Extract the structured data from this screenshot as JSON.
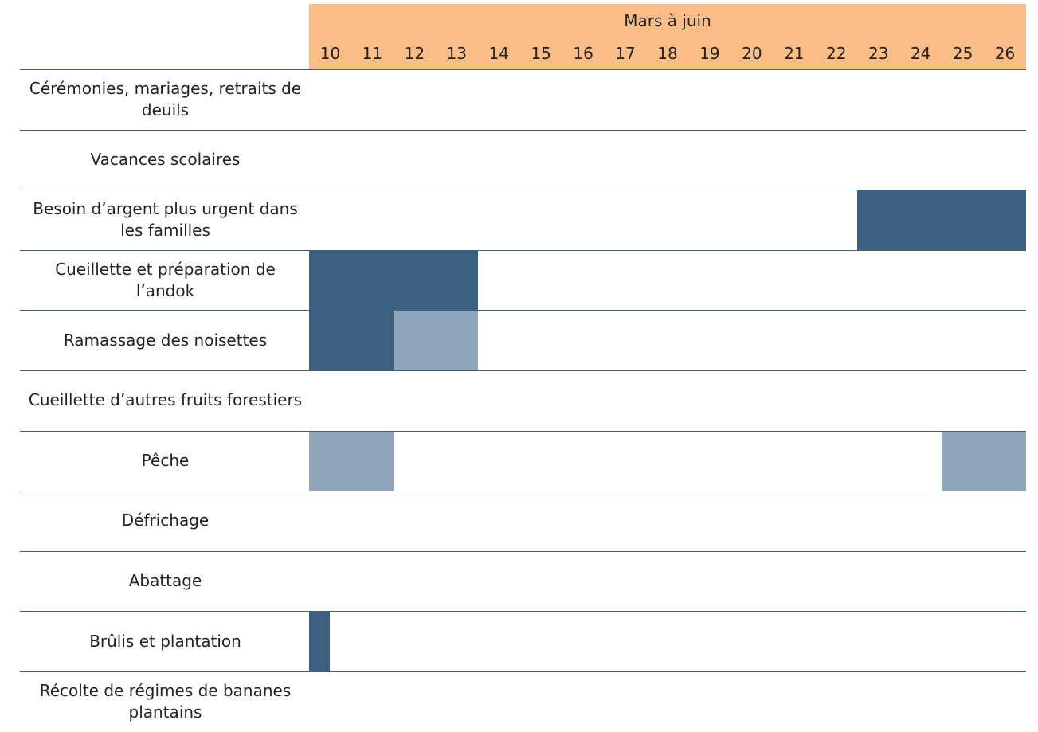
{
  "chart_data": {
    "type": "timeline",
    "header": "Mars à juin",
    "xlim": [
      9.5,
      26.5
    ],
    "xticks": [
      10,
      11,
      12,
      13,
      14,
      15,
      16,
      17,
      18,
      19,
      20,
      21,
      22,
      23,
      24,
      25,
      26
    ],
    "header_color": "#fbbd88",
    "line_color": "#3d6080",
    "rows": [
      {
        "label": "Cérémonies, mariages, retraits de deuils",
        "segments": []
      },
      {
        "label": "Vacances scolaires",
        "segments": []
      },
      {
        "label": "Besoin d’argent plus urgent dans les familles",
        "segments": [
          {
            "start": 22.5,
            "end": 26.5,
            "color": "#3d6080"
          }
        ]
      },
      {
        "label": "Cueillette et préparation de l’andok",
        "segments": [
          {
            "start": 9.5,
            "end": 13.5,
            "color": "#3d6080"
          }
        ]
      },
      {
        "label": "Ramassage des noisettes",
        "segments": [
          {
            "start": 9.5,
            "end": 11.5,
            "color": "#3d6080"
          },
          {
            "start": 11.5,
            "end": 13.5,
            "color": "#8fa5bb"
          }
        ]
      },
      {
        "label": "Cueillette d’autres fruits forestiers",
        "segments": []
      },
      {
        "label": "Pêche",
        "segments": [
          {
            "start": 9.5,
            "end": 11.5,
            "color": "#8fa5bb"
          },
          {
            "start": 24.5,
            "end": 26.5,
            "color": "#8fa5bb"
          }
        ]
      },
      {
        "label": "Défrichage",
        "segments": []
      },
      {
        "label": "Abattage",
        "segments": []
      },
      {
        "label": "Brûlis et plantation",
        "segments": [
          {
            "start": 9.5,
            "end": 10,
            "color": "#3d6080"
          }
        ]
      },
      {
        "label": "Récolte de régimes de bananes plantains",
        "segments": []
      }
    ]
  }
}
